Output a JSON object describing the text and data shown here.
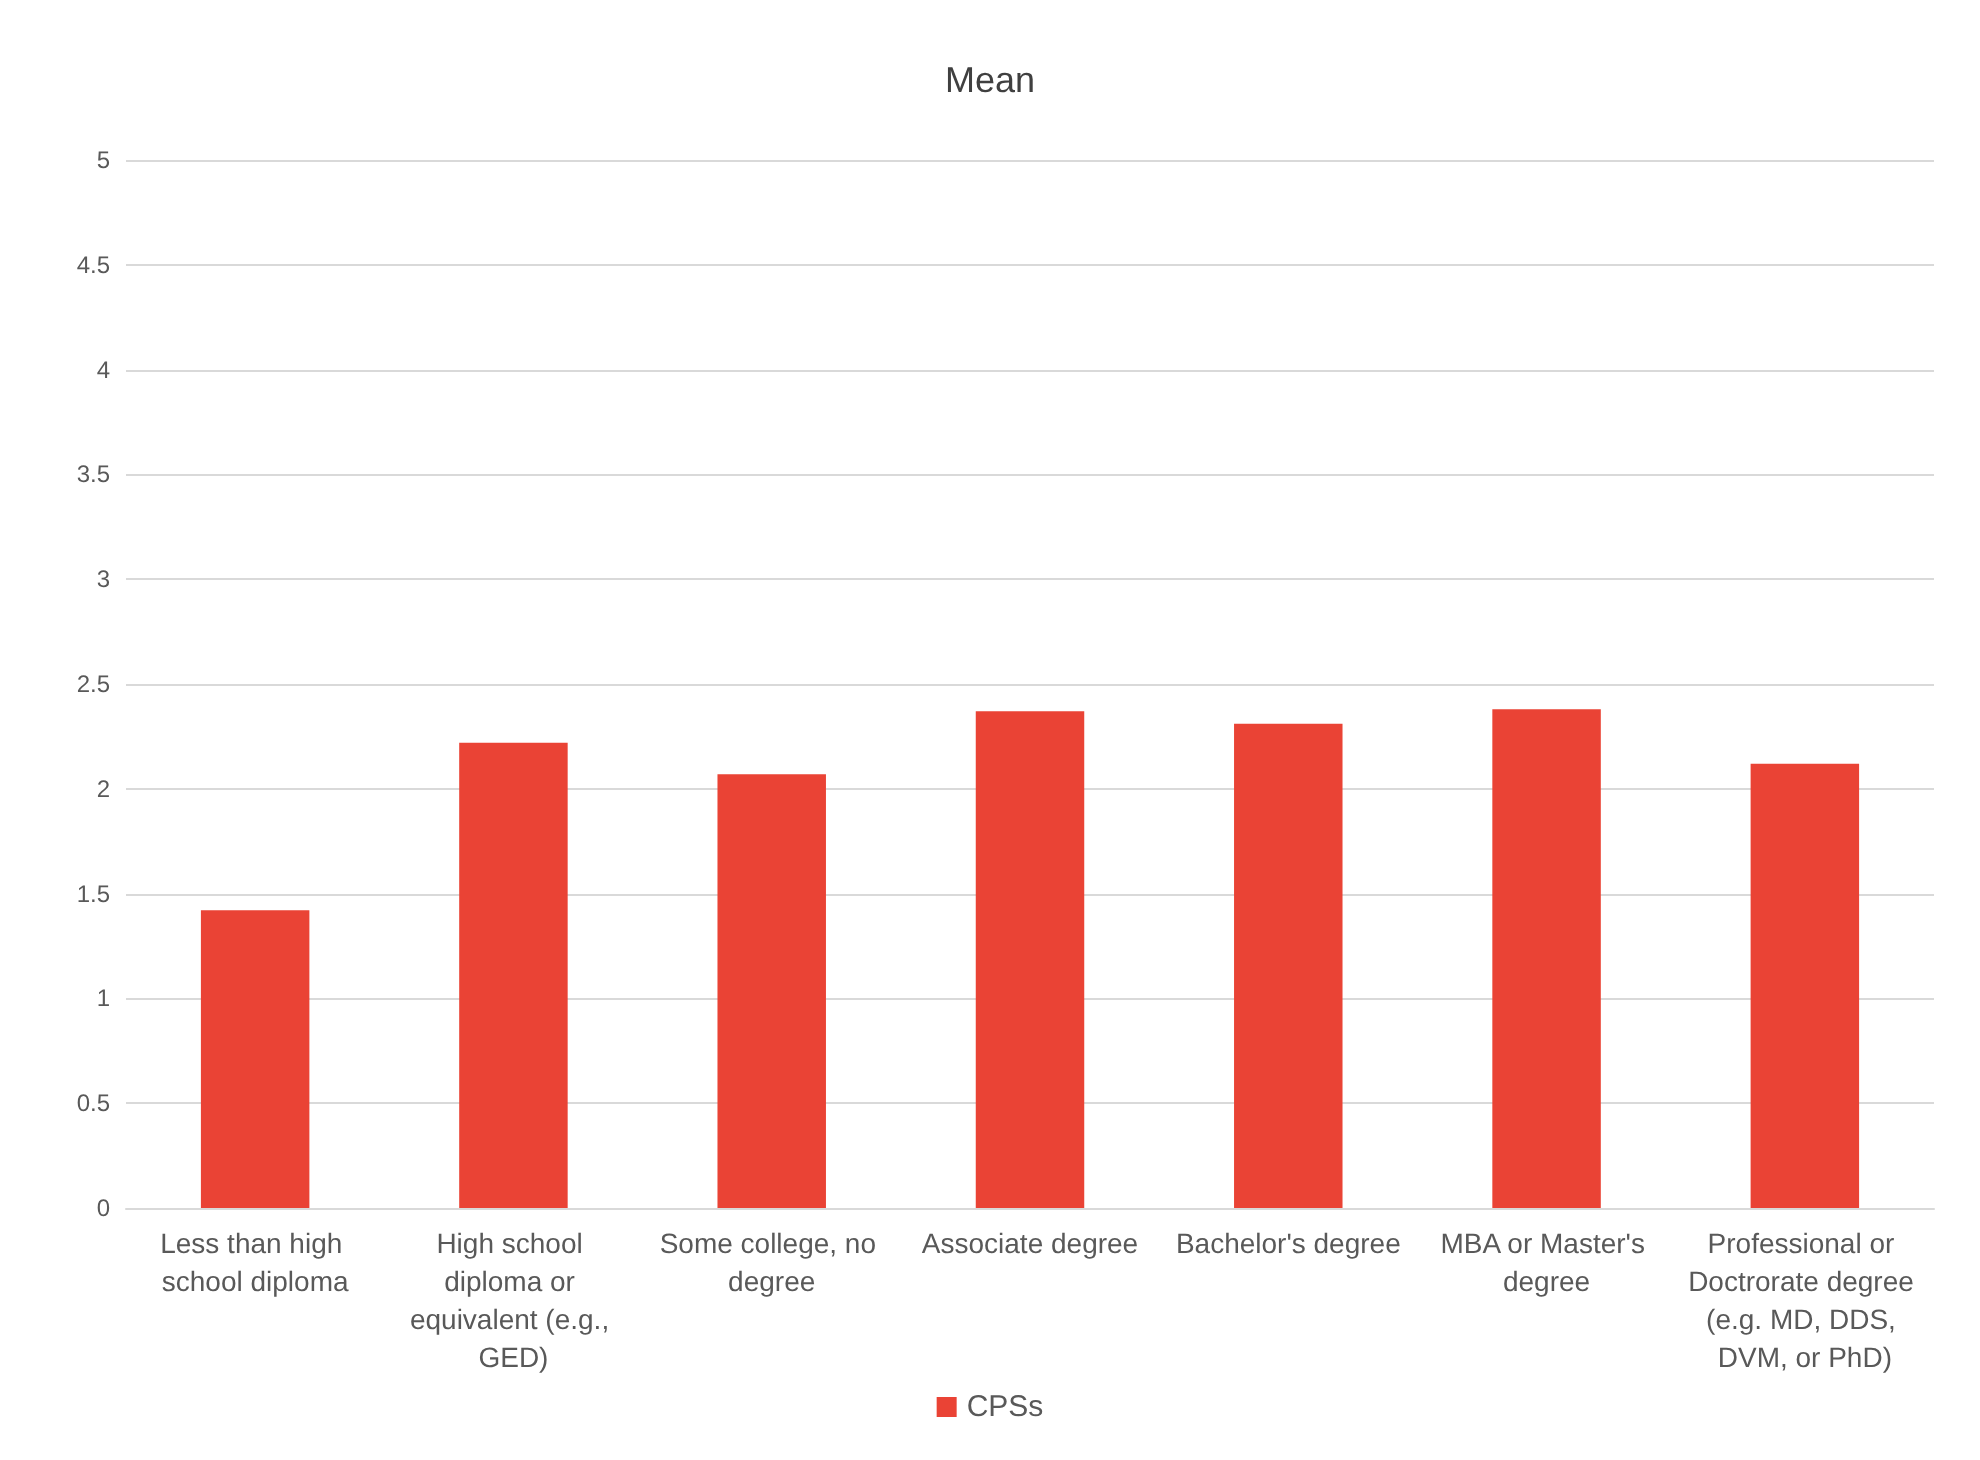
{
  "chart_data": {
    "type": "bar",
    "title": "Mean",
    "categories": [
      "Less than high school diploma",
      "High school diploma or equivalent (e.g., GED)",
      "Some college, no degree",
      "Associate degree",
      "Bachelor's degree",
      "MBA or Master's degree",
      "Professional or Doctrorate degree (e.g. MD, DDS, DVM, or PhD)"
    ],
    "series": [
      {
        "name": "CPSs",
        "color": "#ea4335",
        "values": [
          1.42,
          2.22,
          2.07,
          2.37,
          2.31,
          2.38,
          2.12
        ]
      }
    ],
    "ylim": [
      0,
      5
    ],
    "yticks": [
      0,
      0.5,
      1,
      1.5,
      2,
      2.5,
      3,
      3.5,
      4,
      4.5,
      5
    ],
    "grid": "y",
    "legend": "bottom"
  }
}
